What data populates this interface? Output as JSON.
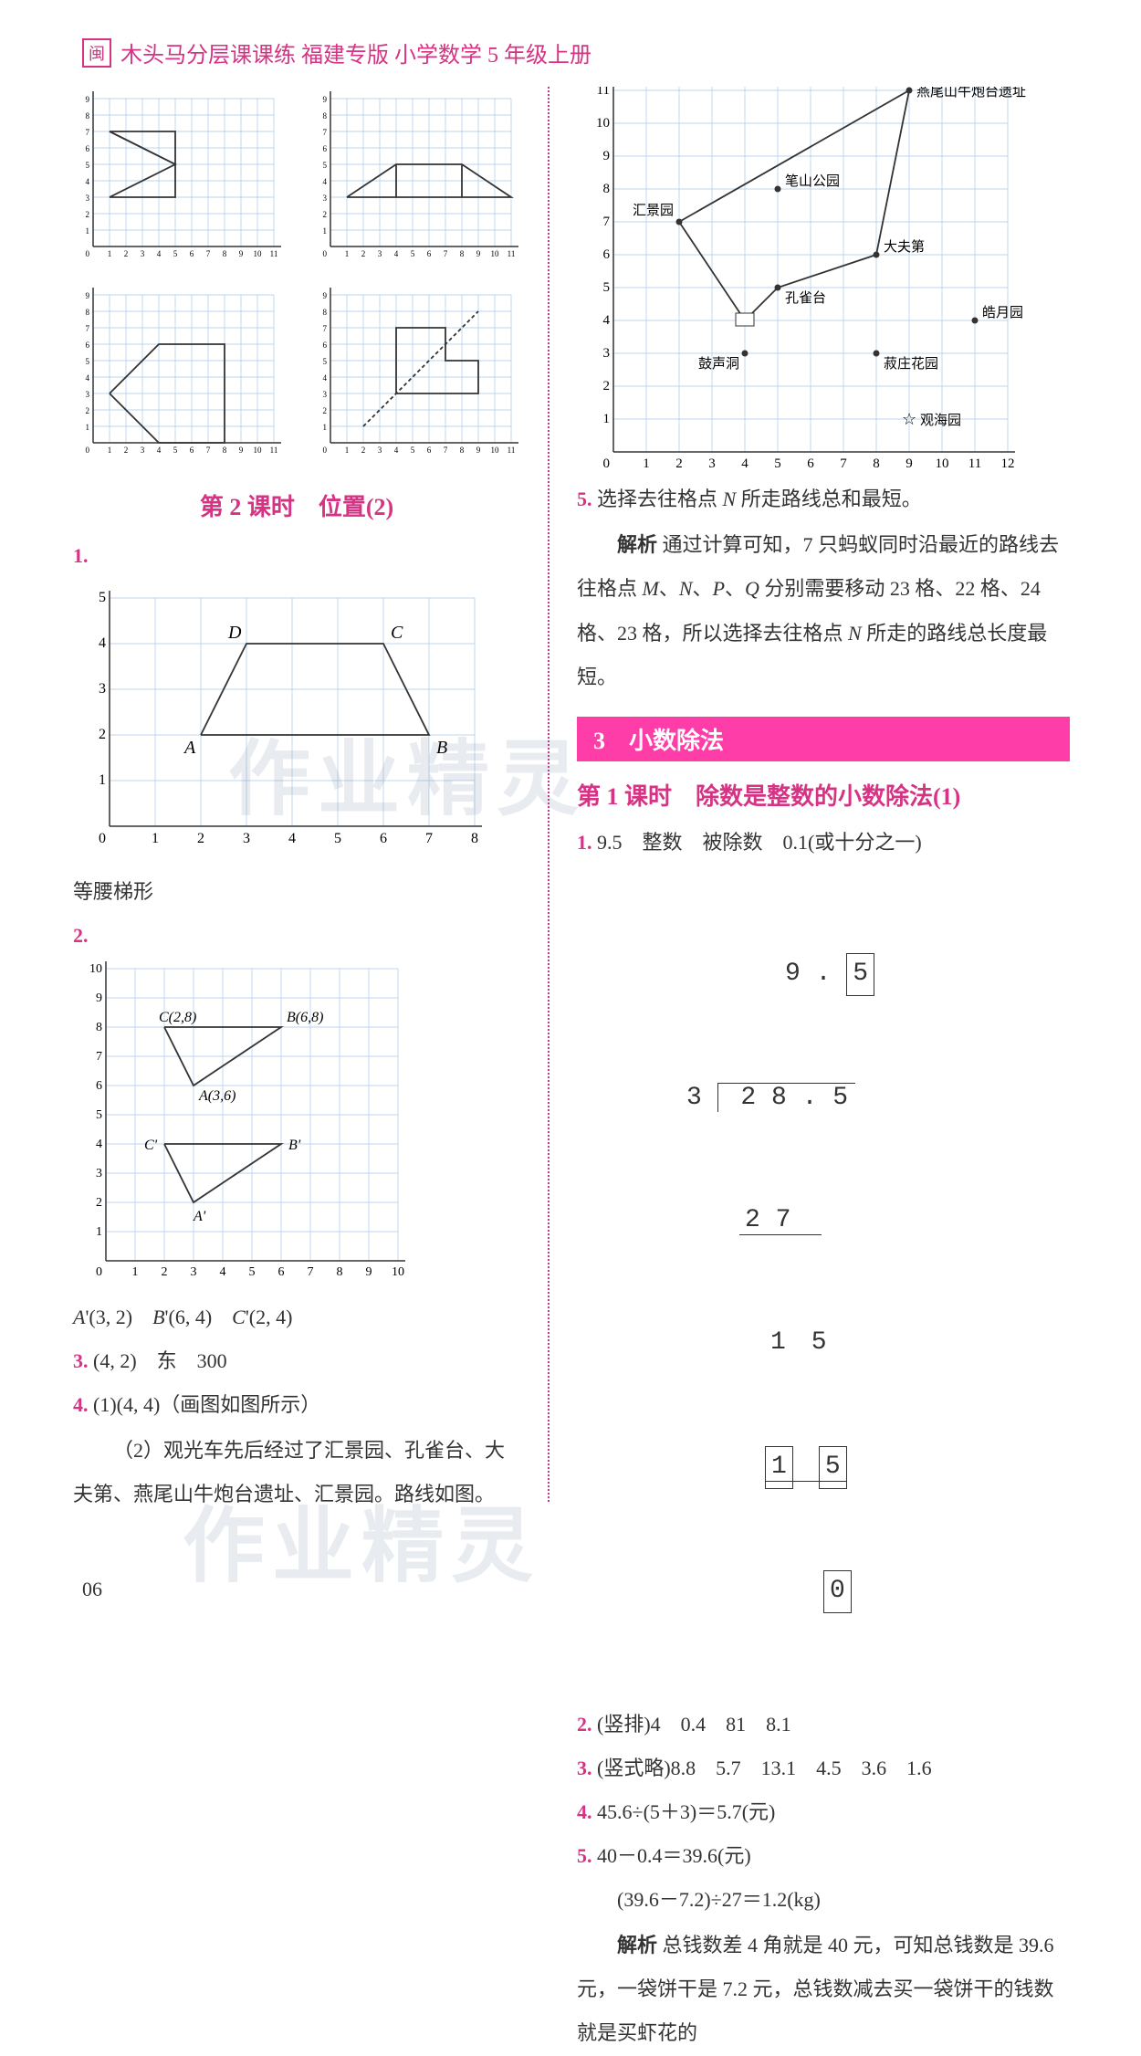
{
  "header": {
    "icon": "闽",
    "title": "木头马分层课课练 福建专版 小学数学 5 年级上册"
  },
  "left": {
    "miniGrids": {
      "xmax": 11,
      "ymax": 9,
      "axisColor": "#333",
      "gridColor": "#a8c8e8",
      "shapes": [
        {
          "pts": [
            [
              1,
              3
            ],
            [
              5,
              5
            ],
            [
              1,
              7
            ],
            [
              5,
              7
            ],
            [
              5,
              3
            ],
            [
              1,
              3
            ]
          ],
          "extra": [
            [
              1,
              7
            ],
            [
              5,
              5
            ]
          ]
        },
        {
          "pts": [
            [
              1,
              3
            ],
            [
              4,
              5
            ],
            [
              8,
              5
            ],
            [
              11,
              3
            ],
            [
              1,
              3
            ]
          ],
          "extraV": [
            [
              4,
              3
            ],
            [
              4,
              5
            ],
            [
              8,
              3
            ],
            [
              8,
              5
            ]
          ]
        },
        {
          "pts": [
            [
              1,
              3
            ],
            [
              4,
              6
            ],
            [
              8,
              6
            ],
            [
              8,
              0
            ],
            [
              4,
              0
            ],
            [
              1,
              3
            ]
          ]
        },
        {
          "pts": [
            [
              4,
              3
            ],
            [
              4,
              7
            ],
            [
              7,
              7
            ],
            [
              7,
              5
            ],
            [
              9,
              5
            ],
            [
              9,
              3
            ],
            [
              4,
              3
            ]
          ],
          "dashed": [
            [
              2,
              1
            ],
            [
              9,
              8
            ]
          ]
        }
      ]
    },
    "section2Title": "第 2 课时　位置(2)",
    "q1": {
      "num": "1.",
      "chart": {
        "xticks": [
          0,
          1,
          2,
          3,
          4,
          5,
          6,
          7,
          8
        ],
        "yticks": [
          0,
          1,
          2,
          3,
          4,
          5
        ],
        "pts": {
          "A": [
            2,
            2
          ],
          "B": [
            7,
            2
          ],
          "C": [
            6,
            4
          ],
          "D": [
            3,
            4
          ]
        },
        "shape": [
          [
            2,
            2
          ],
          [
            7,
            2
          ],
          [
            6,
            4
          ],
          [
            3,
            4
          ],
          [
            2,
            2
          ]
        ]
      },
      "answer": "等腰梯形"
    },
    "q2": {
      "num": "2.",
      "chart": {
        "xmax": 10,
        "ymax": 10,
        "labels": {
          "C": "C(2,8)",
          "B": "B(6,8)",
          "A": "A(3,6)",
          "Cp": "C'",
          "Bp": "B'",
          "Ap": "A'"
        },
        "tri1": [
          [
            2,
            8
          ],
          [
            6,
            8
          ],
          [
            3,
            6
          ],
          [
            2,
            8
          ]
        ],
        "tri2": [
          [
            2,
            4
          ],
          [
            6,
            4
          ],
          [
            3,
            2
          ],
          [
            2,
            4
          ]
        ],
        "cPrime": [
          2,
          4
        ],
        "bPrime": [
          6,
          4
        ],
        "aPrime": [
          3,
          2
        ]
      },
      "answer": "A'(3, 2)　B'(6, 4)　C'(2, 4)"
    },
    "q3": {
      "num": "3.",
      "text": "(4, 2)　东　300"
    },
    "q4": {
      "num": "4.",
      "line1": "(1)(4, 4)（画图如图所示）",
      "line2": "（2）观光车先后经过了汇景园、孔雀台、大夫第、燕尾山牛炮台遗址、汇景园。路线如图。"
    }
  },
  "right": {
    "mapChart": {
      "xmax": 12,
      "ymax": 12,
      "gridColor": "#a8c8e8",
      "points": {
        "yanwei": {
          "x": 9,
          "y": 11,
          "label": "燕尾山牛炮台遗址"
        },
        "bishan": {
          "x": 5,
          "y": 8,
          "label": "笔山公园"
        },
        "huijing": {
          "x": 2,
          "y": 7,
          "label": "汇景园"
        },
        "dafu": {
          "x": 8,
          "y": 6,
          "label": "大夫第"
        },
        "kongque": {
          "x": 5,
          "y": 5,
          "label": "孔雀台"
        },
        "haoyue": {
          "x": 11,
          "y": 4,
          "label": "皓月园"
        },
        "gusheng": {
          "x": 4,
          "y": 3,
          "label": "鼓声洞"
        },
        "shuzhuang": {
          "x": 8,
          "y": 3,
          "label": "菽庄花园"
        },
        "guanhai": {
          "x": 9,
          "y": 1,
          "label": "观海园",
          "star": true
        },
        "bus": {
          "x": 4,
          "y": 4
        }
      },
      "route": [
        [
          2,
          7
        ],
        [
          4,
          4
        ],
        [
          5,
          5
        ],
        [
          8,
          6
        ],
        [
          9,
          11
        ],
        [
          2,
          7
        ]
      ]
    },
    "q5": {
      "num": "5.",
      "text": "选择去往格点 N 所走路线总和最短。",
      "jiexi_label": "解析",
      "jiexi": "通过计算可知，7 只蚂蚁同时沿最近的路线去往格点 M、N、P、Q 分别需要移动 23 格、22 格、24 格、23 格，所以选择去往格点 N 所走的路线总长度最短。"
    },
    "chapter3": "3　小数除法",
    "lesson1": "第 1 课时　除数是整数的小数除法(1)",
    "r1": {
      "num": "1.",
      "text": "9.5　整数　被除数　0.1(或十分之一)",
      "division": {
        "divisor": "3",
        "dividend": "2 8 . 5",
        "quotient_whole": "9 .",
        "quotient_dec": "5",
        "step1": "2 7",
        "rem1": "1   5",
        "step2_1": "1",
        "step2_2": "5",
        "final": "0"
      }
    },
    "r2": {
      "num": "2.",
      "text": "(竖排)4　0.4　81　8.1"
    },
    "r3": {
      "num": "3.",
      "text": "(竖式略)8.8　5.7　13.1　4.5　3.6　1.6"
    },
    "r4": {
      "num": "4.",
      "text": "45.6÷(5＋3)＝5.7(元)"
    },
    "r5": {
      "num": "5.",
      "line1": "40－0.4＝39.6(元)",
      "line2": "(39.6－7.2)÷27＝1.2(kg)",
      "jiexi_label": "解析",
      "jiexi": "总钱数差 4 角就是 40 元，可知总钱数是 39.6 元，一袋饼干是 7.2 元，总钱数减去买一袋饼干的钱数就是买虾花的"
    }
  },
  "pageNum": "06",
  "watermarks": {
    "t1": "作业精灵",
    "t2": "作业精灵"
  }
}
